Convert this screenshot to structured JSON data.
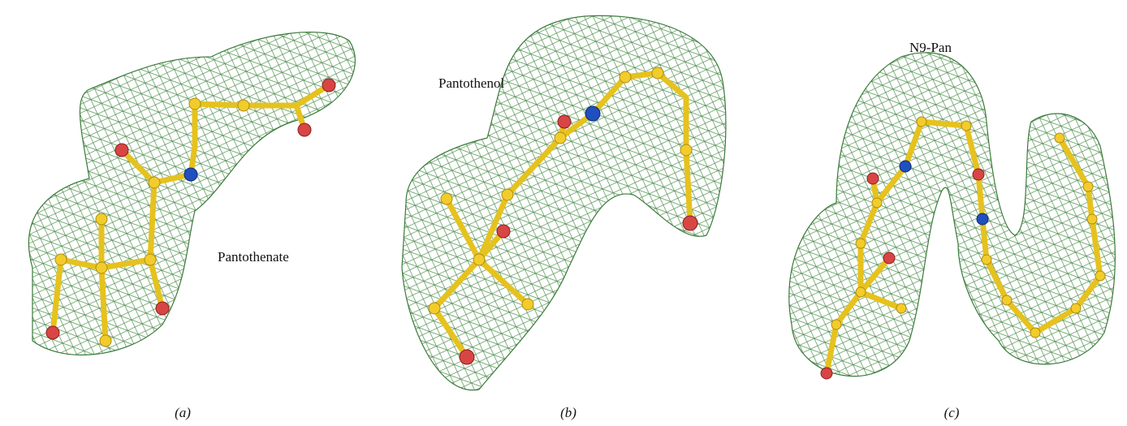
{
  "panels": [
    {
      "molecule": "Pantothenate",
      "caption": "(a)"
    },
    {
      "molecule": "Pantothenol",
      "caption": "(b)"
    },
    {
      "molecule": "N9-Pan",
      "caption": "(c)"
    }
  ]
}
